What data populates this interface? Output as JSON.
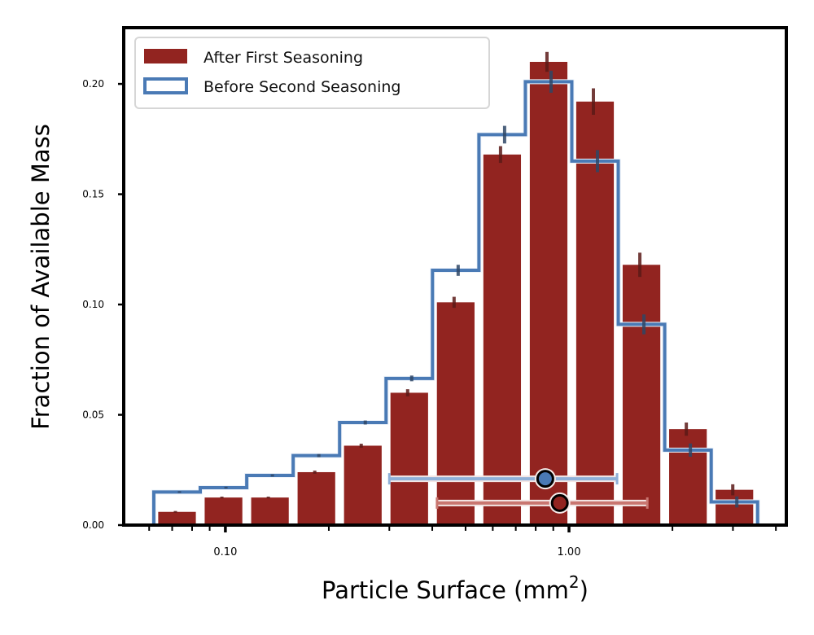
{
  "chart_data": {
    "type": "bar",
    "title": "",
    "xlabel": "Particle Surface (mm",
    "xlabel_sup": "2",
    "xlabel_close": ")",
    "ylabel": "Fraction of Available Mass",
    "xscale": "log",
    "xlim": [
      0.0506,
      4.29
    ],
    "ylim": [
      0.0,
      0.2255
    ],
    "grid": false,
    "legend_position": "top-left",
    "x_major_ticks": [
      {
        "value": 0.1,
        "label": "0.10"
      },
      {
        "value": 1.0,
        "label": "1.00"
      }
    ],
    "x_minor_ticks": [
      0.06,
      0.07,
      0.08,
      0.09,
      0.2,
      0.3,
      0.4,
      0.5,
      0.6,
      0.7,
      0.8,
      0.9,
      2,
      3,
      4
    ],
    "y_ticks": [
      {
        "value": 0.0,
        "label": "0.00"
      },
      {
        "value": 0.05,
        "label": "0.05"
      },
      {
        "value": 0.1,
        "label": "0.10"
      },
      {
        "value": 0.15,
        "label": "0.15"
      },
      {
        "value": 0.2,
        "label": "0.20"
      }
    ],
    "bin_edges": [
      0.0619,
      0.0845,
      0.1154,
      0.1575,
      0.215,
      0.2935,
      0.4006,
      0.5469,
      0.7466,
      1.019,
      1.391,
      1.899,
      2.593,
      3.539
    ],
    "series": [
      {
        "name": "After First Seasoning",
        "kind": "bar",
        "color": "#922420",
        "errcolor": "#5a1a18",
        "values": [
          0.006,
          0.0125,
          0.0125,
          0.024,
          0.036,
          0.06,
          0.101,
          0.168,
          0.21,
          0.192,
          0.118,
          0.0435,
          0.016
        ],
        "errors": [
          0.0004,
          0.0004,
          0.0004,
          0.0007,
          0.0009,
          0.0016,
          0.0025,
          0.0038,
          0.0045,
          0.006,
          0.0055,
          0.003,
          0.0025
        ]
      },
      {
        "name": "Before Second Seasoning",
        "kind": "step",
        "color": "#4a7ab5",
        "errcolor": "#2e4666",
        "values": [
          0.015,
          0.017,
          0.0225,
          0.0315,
          0.0465,
          0.0665,
          0.1155,
          0.177,
          0.201,
          0.165,
          0.091,
          0.034,
          0.0105
        ],
        "errors": [
          0.0004,
          0.0004,
          0.0005,
          0.0007,
          0.0009,
          0.0013,
          0.0025,
          0.004,
          0.005,
          0.005,
          0.0045,
          0.003,
          0.0025
        ]
      }
    ],
    "summary_points": [
      {
        "name": "Before Second Seasoning median",
        "x": 0.853,
        "y": 0.021,
        "xmin": 0.3,
        "xmax": 1.38,
        "color": "#4a7ab5",
        "barcolor": "#8fb0d8"
      },
      {
        "name": "After First Seasoning median",
        "x": 0.94,
        "y": 0.01,
        "xmin": 0.413,
        "xmax": 1.69,
        "color": "#922420",
        "barcolor": "#c97670"
      }
    ]
  }
}
